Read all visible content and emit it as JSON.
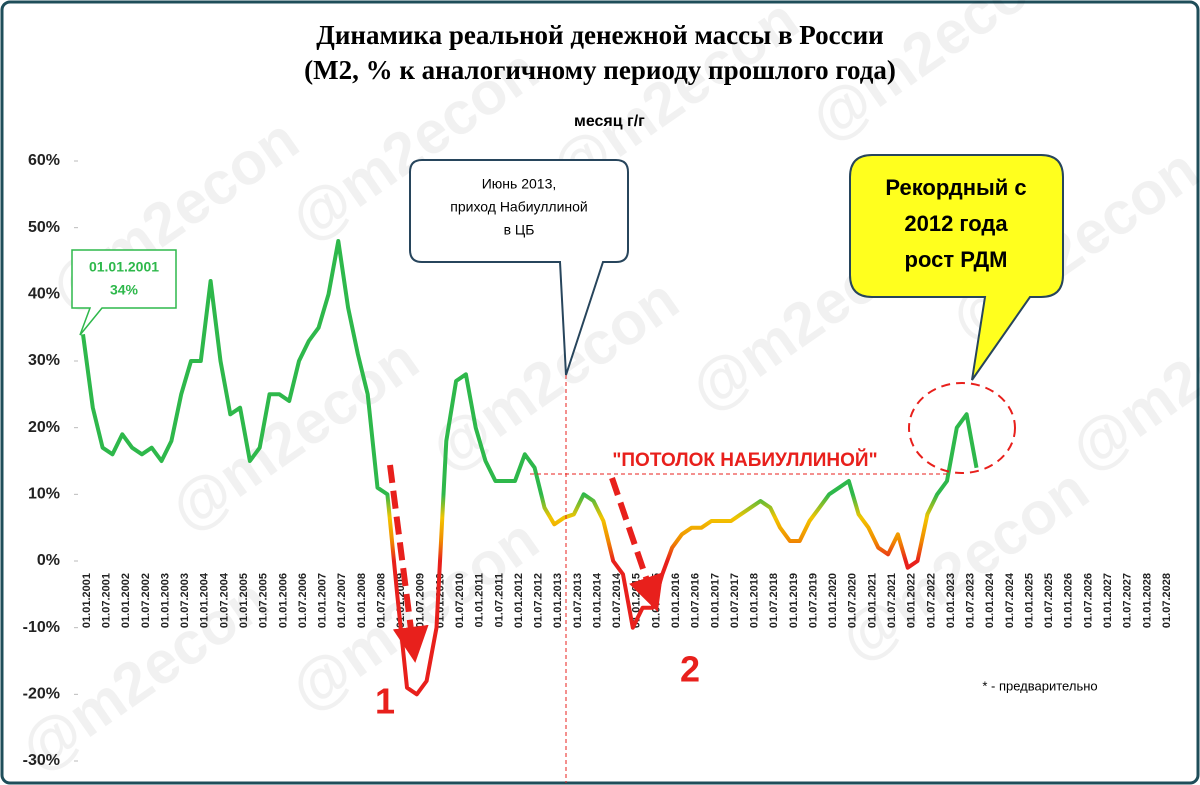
{
  "chart_data": {
    "type": "line",
    "title": [
      "Динамика реальной денежной массы в России",
      "(М2, % к аналогичному периоду прошлого года)"
    ],
    "ylim": [
      -30,
      60
    ],
    "yticks": [
      {
        "value": -30,
        "label": "-30%"
      },
      {
        "value": -20,
        "label": "-20%"
      },
      {
        "value": -10,
        "label": "-10%"
      },
      {
        "value": 0,
        "label": "0%"
      },
      {
        "value": 10,
        "label": "10%"
      },
      {
        "value": 20,
        "label": "20%"
      },
      {
        "value": 30,
        "label": "30%"
      },
      {
        "value": 40,
        "label": "40%"
      },
      {
        "value": 50,
        "label": "50%"
      },
      {
        "value": 60,
        "label": "60%"
      }
    ],
    "xticks": [
      "01.01.2001",
      "01.07.2001",
      "01.01.2002",
      "01.07.2002",
      "01.01.2003",
      "01.07.2003",
      "01.01.2004",
      "01.07.2004",
      "01.01.2005",
      "01.07.2005",
      "01.01.2006",
      "01.07.2006",
      "01.01.2007",
      "01.07.2007",
      "01.01.2008",
      "01.07.2008",
      "01.01.2009",
      "01.07.2009",
      "01.01.2010",
      "01.07.2010",
      "01.01.2011",
      "01.07.2011",
      "01.01.2012",
      "01.07.2012",
      "01.01.2013",
      "01.07.2013",
      "01.01.2014",
      "01.07.2014",
      "01.01.2015",
      "01.07.2015",
      "01.01.2016",
      "01.07.2016",
      "01.01.2017",
      "01.07.2017",
      "01.01.2018",
      "01.07.2018",
      "01.01.2019",
      "01.07.2019",
      "01.01.2020",
      "01.07.2020",
      "01.01.2021",
      "01.07.2021",
      "01.01.2022",
      "01.07.2022",
      "01.01.2023",
      "01.07.2023",
      "01.01.2024",
      "01.07.2024",
      "01.01.2025",
      "01.07.2025",
      "01.01.2026",
      "01.07.2026",
      "01.01.2027",
      "01.07.2027",
      "01.01.2028",
      "01.07.2028"
    ],
    "x": [
      "01.01.2001",
      "01.04.2001",
      "01.07.2001",
      "01.10.2001",
      "01.01.2002",
      "01.04.2002",
      "01.07.2002",
      "01.10.2002",
      "01.01.2003",
      "01.04.2003",
      "01.07.2003",
      "01.10.2003",
      "01.01.2004",
      "01.04.2004",
      "01.07.2004",
      "01.10.2004",
      "01.01.2005",
      "01.04.2005",
      "01.07.2005",
      "01.10.2005",
      "01.01.2006",
      "01.04.2006",
      "01.07.2006",
      "01.10.2006",
      "01.01.2007",
      "01.04.2007",
      "01.07.2007",
      "01.10.2007",
      "01.01.2008",
      "01.04.2008",
      "01.07.2008",
      "01.10.2008",
      "01.01.2009",
      "01.04.2009",
      "01.07.2009",
      "01.10.2009",
      "01.01.2010",
      "01.04.2010",
      "01.07.2010",
      "01.10.2010",
      "01.01.2011",
      "01.04.2011",
      "01.07.2011",
      "01.10.2011",
      "01.01.2012",
      "01.04.2012",
      "01.07.2012",
      "01.10.2012",
      "01.01.2013",
      "01.04.2013",
      "01.07.2013",
      "01.10.2013",
      "01.01.2014",
      "01.04.2014",
      "01.07.2014",
      "01.10.2014",
      "01.01.2015",
      "01.04.2015",
      "01.07.2015",
      "01.10.2015",
      "01.01.2016",
      "01.04.2016",
      "01.07.2016",
      "01.10.2016",
      "01.01.2017",
      "01.04.2017",
      "01.07.2017",
      "01.10.2017",
      "01.01.2018",
      "01.04.2018",
      "01.07.2018",
      "01.10.2018",
      "01.01.2019",
      "01.04.2019",
      "01.07.2019",
      "01.10.2019",
      "01.01.2020",
      "01.04.2020",
      "01.07.2020",
      "01.10.2020",
      "01.01.2021",
      "01.04.2021",
      "01.07.2021",
      "01.10.2021",
      "01.01.2022",
      "01.04.2022",
      "01.07.2022",
      "01.10.2022",
      "01.01.2023",
      "01.04.2023",
      "01.07.2023",
      "01.10.2023"
    ],
    "series": [
      {
        "name": "месяц г/г",
        "color": "#2eb84b",
        "values": [
          34,
          23,
          17,
          16,
          19,
          17,
          16,
          17,
          15,
          18,
          25,
          30,
          30,
          42,
          30,
          22,
          23,
          15,
          17,
          25,
          25,
          24,
          30,
          33,
          35,
          40,
          48,
          38,
          31,
          25,
          11,
          10,
          -5,
          -19,
          -20,
          -18,
          -10,
          18,
          27,
          28,
          20,
          15,
          12,
          12,
          12,
          16,
          14,
          8,
          5.5,
          6.5,
          7,
          10,
          9,
          6,
          0,
          -2,
          -10,
          -7,
          -7,
          -2,
          2,
          4,
          5,
          5,
          6,
          6,
          6,
          7,
          8,
          9,
          8,
          5,
          3,
          3,
          6,
          8,
          10,
          11,
          12,
          7,
          5,
          2,
          1,
          4,
          -1,
          0,
          7,
          10,
          12,
          20,
          22,
          14
        ]
      }
    ],
    "annotations": {
      "start": [
        "01.01.2001",
        "34%"
      ],
      "june2013": [
        "Июнь 2013,",
        "приход Набиуллиной",
        "в ЦБ"
      ],
      "record": [
        "Рекордный с",
        "2012 года",
        "рост РДМ"
      ],
      "ceiling": "\"ПОТОЛОК НАБИУЛЛИНОЙ\"",
      "one": "1",
      "two": "2",
      "note": "* - предварительно",
      "watermark": "@m2econ"
    }
  }
}
